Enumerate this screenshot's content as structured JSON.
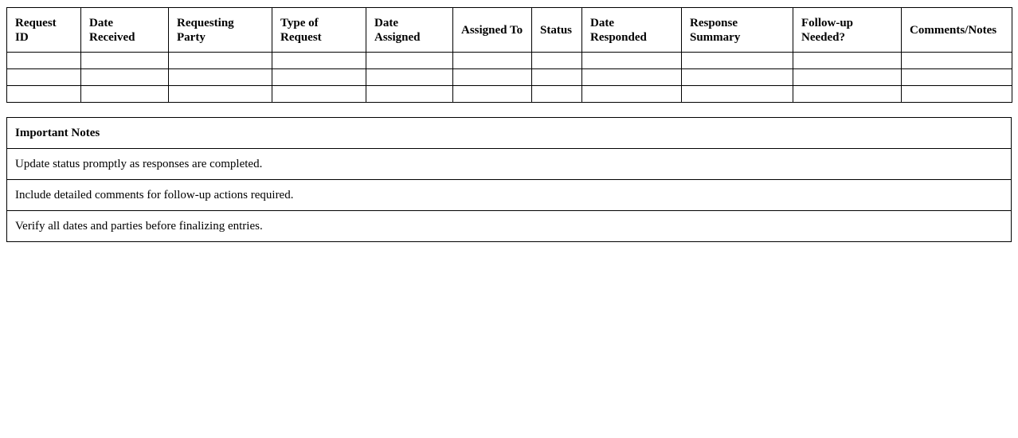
{
  "request_log": {
    "columns": [
      "Request ID",
      "Date Received",
      "Requesting Party",
      "Type of Request",
      "Date Assigned",
      "Assigned To",
      "Status",
      "Date Responded",
      "Response Summary",
      "Follow-up Needed?",
      "Comments/Notes"
    ],
    "rows": [
      [
        "",
        "",
        "",
        "",
        "",
        "",
        "",
        "",
        "",
        "",
        ""
      ],
      [
        "",
        "",
        "",
        "",
        "",
        "",
        "",
        "",
        "",
        "",
        ""
      ],
      [
        "",
        "",
        "",
        "",
        "",
        "",
        "",
        "",
        "",
        "",
        ""
      ]
    ]
  },
  "notes": {
    "title": "Important Notes",
    "items": [
      "Update status promptly as responses are completed.",
      "Include detailed comments for follow-up actions required.",
      "Verify all dates and parties before finalizing entries."
    ]
  }
}
